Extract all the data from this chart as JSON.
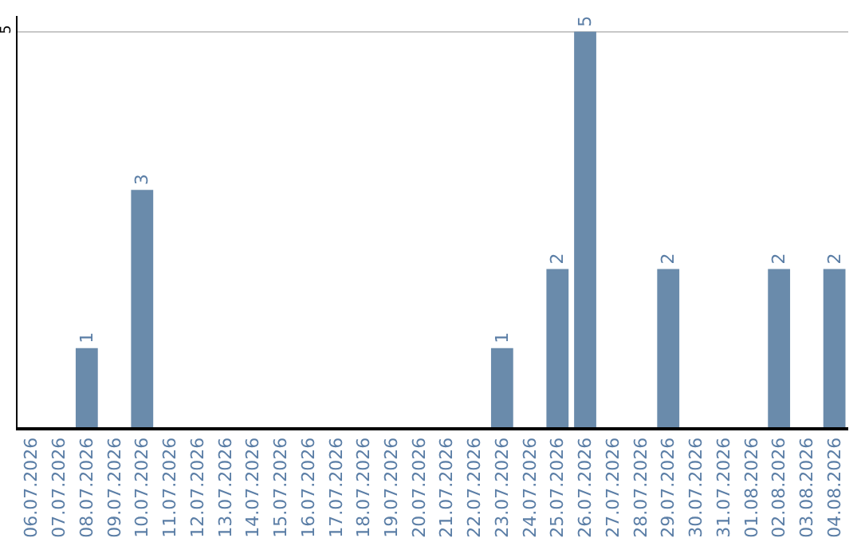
{
  "chart_data": {
    "type": "bar",
    "categories": [
      "06.07.2026",
      "07.07.2026",
      "08.07.2026",
      "09.07.2026",
      "10.07.2026",
      "11.07.2026",
      "12.07.2026",
      "13.07.2026",
      "14.07.2026",
      "15.07.2026",
      "16.07.2026",
      "17.07.2026",
      "18.07.2026",
      "19.07.2026",
      "20.07.2026",
      "21.07.2026",
      "22.07.2026",
      "23.07.2026",
      "24.07.2026",
      "25.07.2026",
      "26.07.2026",
      "27.07.2026",
      "28.07.2026",
      "29.07.2026",
      "30.07.2026",
      "31.07.2026",
      "01.08.2026",
      "02.08.2026",
      "03.08.2026",
      "04.08.2026"
    ],
    "values": [
      0,
      0,
      1,
      0,
      3,
      0,
      0,
      0,
      0,
      0,
      0,
      0,
      0,
      0,
      0,
      0,
      0,
      1,
      0,
      2,
      5,
      0,
      0,
      2,
      0,
      0,
      0,
      2,
      0,
      2
    ],
    "value_labels": [
      null,
      null,
      "1",
      null,
      "3",
      null,
      null,
      null,
      null,
      null,
      null,
      null,
      null,
      null,
      null,
      null,
      null,
      "1",
      null,
      "2",
      "5",
      null,
      null,
      "2",
      null,
      null,
      null,
      "2",
      null,
      "2"
    ],
    "color": "#6a8bab",
    "ylim": [
      0,
      5.2
    ],
    "yticks": [
      5
    ],
    "grid": "y",
    "legend": false
  }
}
